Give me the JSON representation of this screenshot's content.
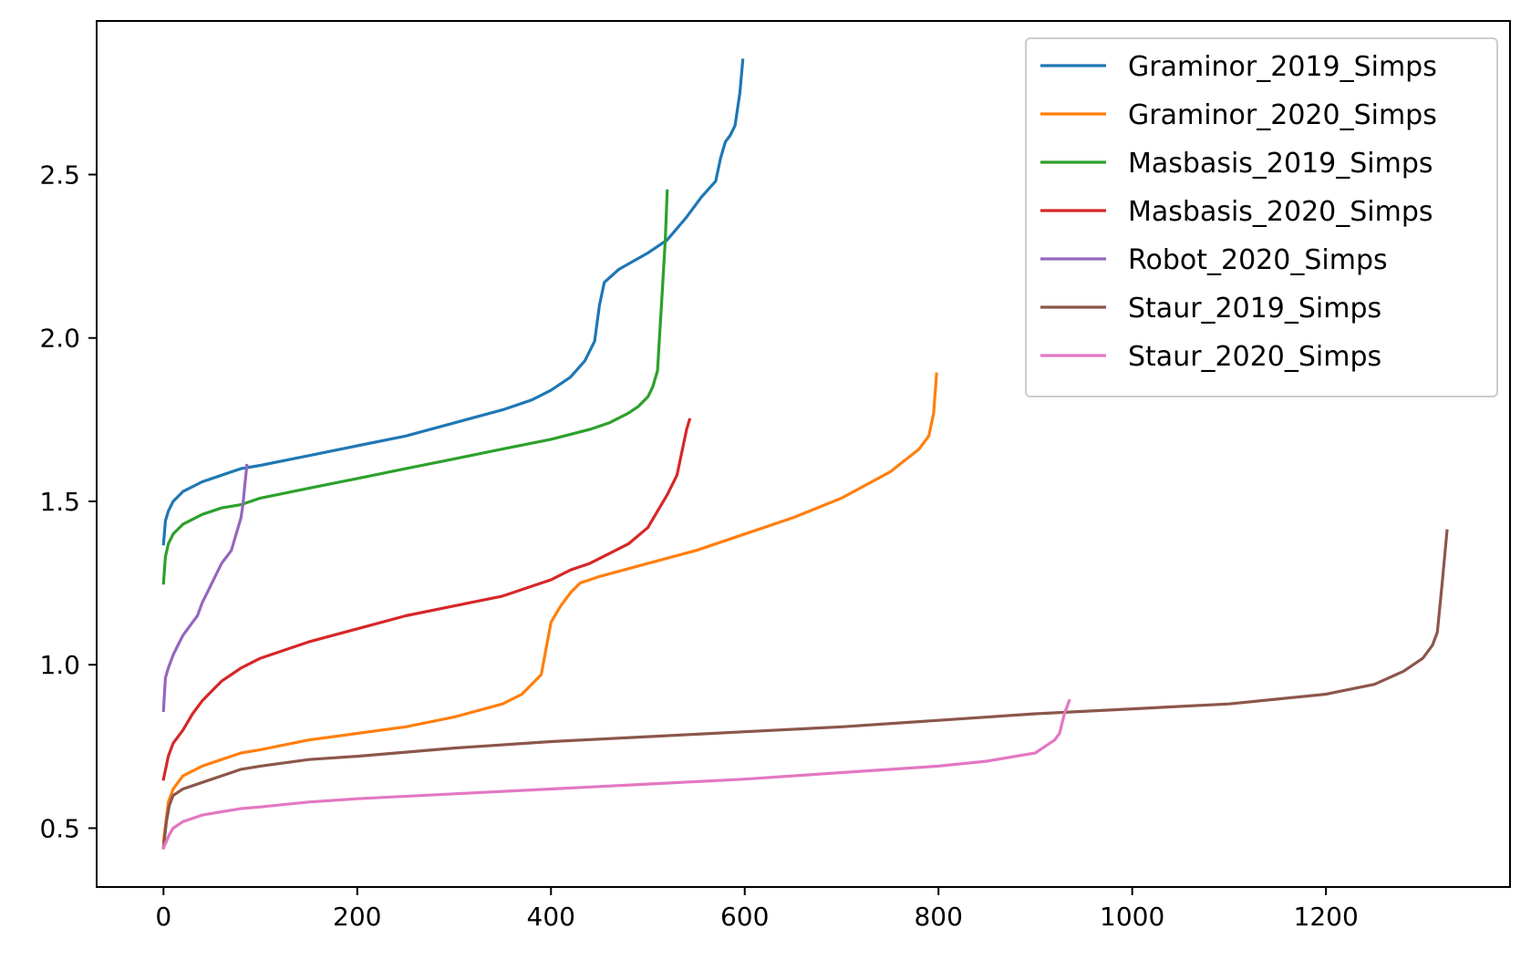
{
  "chart_data": {
    "type": "line",
    "title": "",
    "xlabel": "",
    "ylabel": "",
    "xlim": [
      -69,
      1390
    ],
    "ylim": [
      0.32,
      2.97
    ],
    "x_ticks": [
      0,
      200,
      400,
      600,
      800,
      1000,
      1200
    ],
    "y_ticks": [
      0.5,
      1.0,
      1.5,
      2.0,
      2.5
    ],
    "x_tick_labels": [
      "0",
      "200",
      "400",
      "600",
      "800",
      "1000",
      "1200"
    ],
    "y_tick_labels": [
      "0.5",
      "1.0",
      "1.5",
      "2.0",
      "2.5"
    ],
    "grid": false,
    "legend_position": "top-right",
    "series": [
      {
        "name": "Graminor_2019_Simps",
        "color": "#1f77b4",
        "x": [
          0,
          2,
          5,
          10,
          20,
          40,
          60,
          80,
          100,
          150,
          200,
          250,
          300,
          350,
          380,
          400,
          420,
          435,
          445,
          450,
          455,
          470,
          500,
          520,
          540,
          555,
          570,
          575,
          580,
          585,
          590,
          595,
          598
        ],
        "y": [
          1.37,
          1.44,
          1.47,
          1.5,
          1.53,
          1.56,
          1.58,
          1.6,
          1.61,
          1.64,
          1.67,
          1.7,
          1.74,
          1.78,
          1.81,
          1.84,
          1.88,
          1.93,
          1.99,
          2.1,
          2.17,
          2.21,
          2.26,
          2.3,
          2.37,
          2.43,
          2.48,
          2.55,
          2.6,
          2.62,
          2.65,
          2.75,
          2.85
        ]
      },
      {
        "name": "Graminor_2020_Simps",
        "color": "#ff7f0e",
        "x": [
          0,
          5,
          10,
          20,
          40,
          60,
          80,
          100,
          150,
          200,
          250,
          300,
          350,
          370,
          380,
          390,
          395,
          400,
          410,
          420,
          430,
          450,
          500,
          550,
          600,
          650,
          700,
          750,
          780,
          790,
          795,
          798
        ],
        "y": [
          0.46,
          0.58,
          0.62,
          0.66,
          0.69,
          0.71,
          0.73,
          0.74,
          0.77,
          0.79,
          0.81,
          0.84,
          0.88,
          0.91,
          0.94,
          0.97,
          1.05,
          1.13,
          1.18,
          1.22,
          1.25,
          1.27,
          1.31,
          1.35,
          1.4,
          1.45,
          1.51,
          1.59,
          1.66,
          1.7,
          1.77,
          1.89
        ]
      },
      {
        "name": "Masbasis_2019_Simps",
        "color": "#2ca02c",
        "x": [
          0,
          2,
          5,
          10,
          20,
          40,
          60,
          80,
          100,
          150,
          200,
          250,
          300,
          350,
          400,
          440,
          460,
          480,
          490,
          500,
          505,
          510,
          512,
          514,
          516,
          518,
          520
        ],
        "y": [
          1.25,
          1.33,
          1.37,
          1.4,
          1.43,
          1.46,
          1.48,
          1.49,
          1.51,
          1.54,
          1.57,
          1.6,
          1.63,
          1.66,
          1.69,
          1.72,
          1.74,
          1.77,
          1.79,
          1.82,
          1.85,
          1.9,
          2.0,
          2.1,
          2.2,
          2.3,
          2.45
        ]
      },
      {
        "name": "Masbasis_2020_Simps",
        "color": "#d62728",
        "x": [
          0,
          5,
          10,
          20,
          30,
          40,
          50,
          60,
          70,
          80,
          100,
          120,
          150,
          200,
          250,
          300,
          350,
          400,
          420,
          440,
          460,
          480,
          500,
          510,
          520,
          530,
          535,
          540,
          543
        ],
        "y": [
          0.65,
          0.72,
          0.76,
          0.8,
          0.85,
          0.89,
          0.92,
          0.95,
          0.97,
          0.99,
          1.02,
          1.04,
          1.07,
          1.11,
          1.15,
          1.18,
          1.21,
          1.26,
          1.29,
          1.31,
          1.34,
          1.37,
          1.42,
          1.47,
          1.52,
          1.58,
          1.65,
          1.72,
          1.75
        ]
      },
      {
        "name": "Robot_2020_Simps",
        "color": "#9467bd",
        "x": [
          0,
          2,
          5,
          10,
          15,
          20,
          25,
          30,
          35,
          40,
          45,
          50,
          55,
          60,
          65,
          70,
          75,
          80,
          82,
          84,
          86
        ],
        "y": [
          0.86,
          0.96,
          0.99,
          1.03,
          1.06,
          1.09,
          1.11,
          1.13,
          1.15,
          1.19,
          1.22,
          1.25,
          1.28,
          1.31,
          1.33,
          1.35,
          1.4,
          1.45,
          1.49,
          1.55,
          1.61
        ]
      },
      {
        "name": "Staur_2019_Simps",
        "color": "#8c564b",
        "x": [
          0,
          3,
          6,
          10,
          20,
          40,
          60,
          80,
          100,
          150,
          200,
          300,
          400,
          500,
          600,
          700,
          800,
          900,
          1000,
          1100,
          1200,
          1250,
          1280,
          1300,
          1310,
          1315,
          1320,
          1325
        ],
        "y": [
          0.44,
          0.52,
          0.57,
          0.6,
          0.62,
          0.64,
          0.66,
          0.68,
          0.69,
          0.71,
          0.72,
          0.745,
          0.765,
          0.78,
          0.795,
          0.81,
          0.83,
          0.85,
          0.865,
          0.88,
          0.91,
          0.94,
          0.98,
          1.02,
          1.06,
          1.1,
          1.25,
          1.41
        ]
      },
      {
        "name": "Staur_2020_Simps",
        "color": "#e377c2",
        "x": [
          0,
          3,
          6,
          10,
          20,
          40,
          60,
          80,
          100,
          150,
          200,
          300,
          400,
          500,
          600,
          700,
          800,
          850,
          880,
          900,
          910,
          920,
          925,
          930,
          935
        ],
        "y": [
          0.44,
          0.46,
          0.48,
          0.5,
          0.52,
          0.54,
          0.55,
          0.56,
          0.565,
          0.58,
          0.59,
          0.605,
          0.62,
          0.635,
          0.65,
          0.67,
          0.69,
          0.705,
          0.72,
          0.73,
          0.75,
          0.77,
          0.79,
          0.85,
          0.89
        ]
      }
    ]
  }
}
